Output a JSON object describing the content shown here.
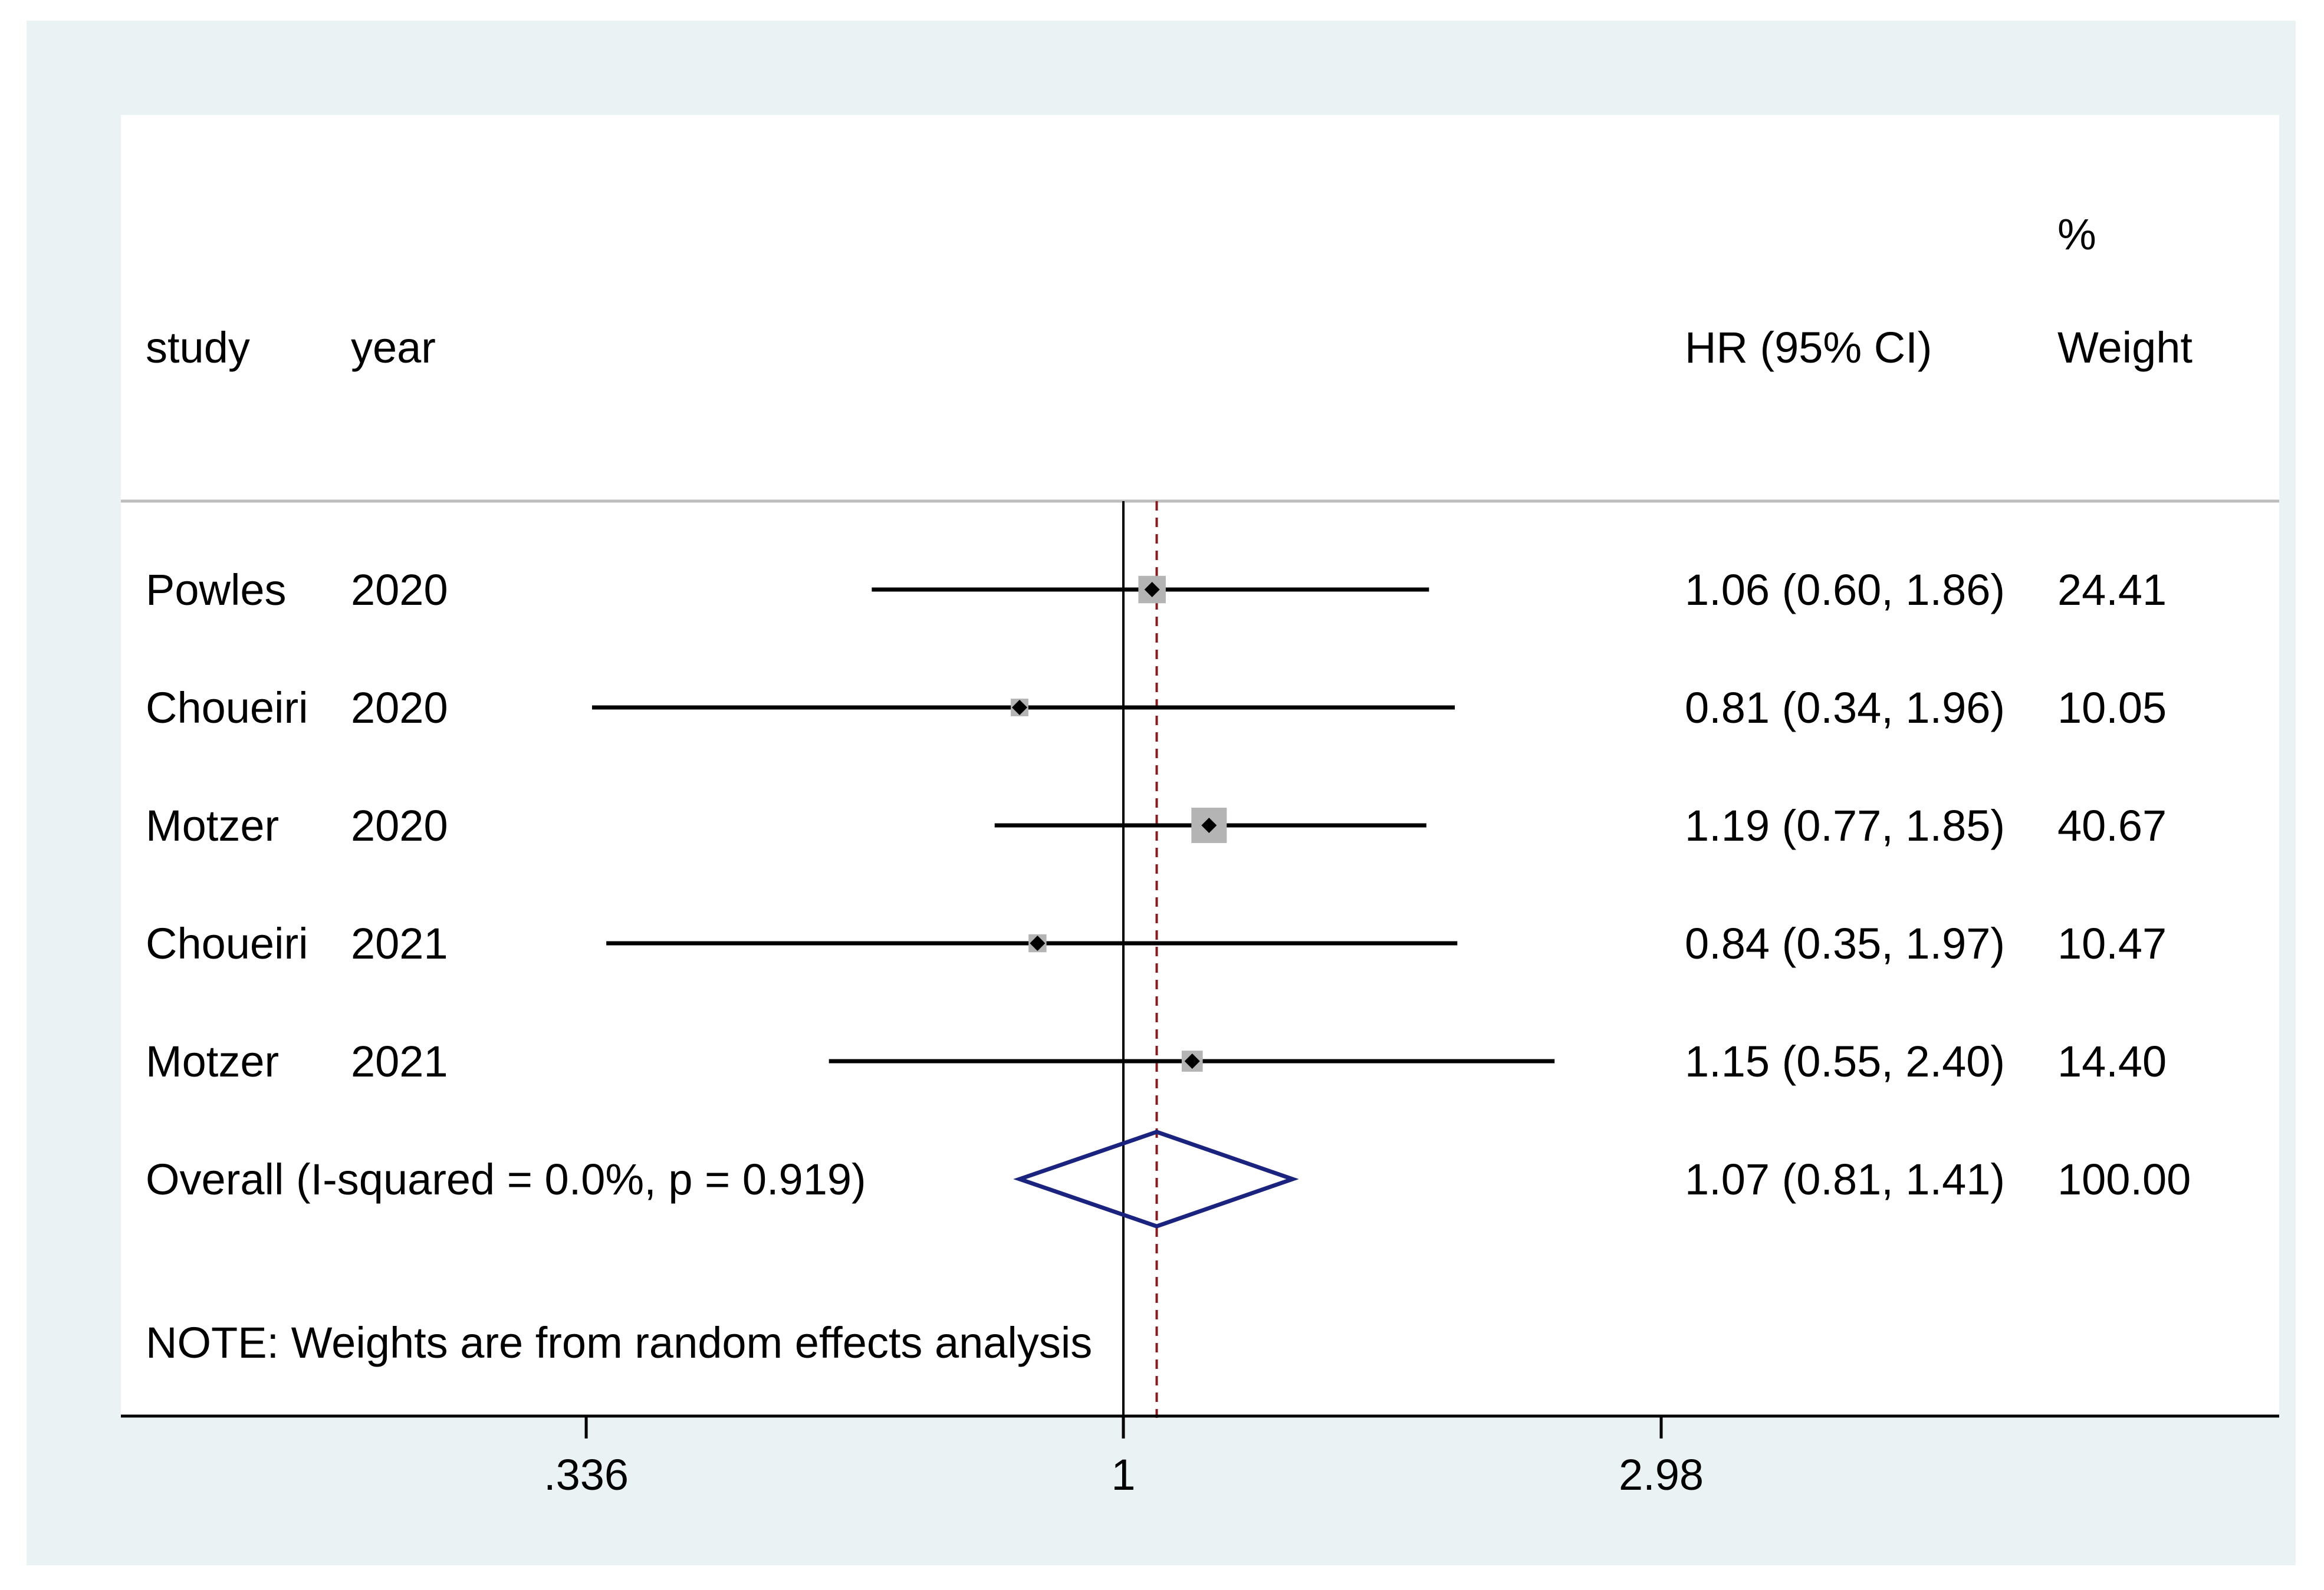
{
  "chart_data": {
    "type": "forest",
    "header": {
      "col_study": "study",
      "col_year": "year",
      "col_effect": "HR (95% CI)",
      "col_weight_line1": "%",
      "col_weight_line2": "Weight"
    },
    "studies": [
      {
        "study": "Powles",
        "year": "2020",
        "hr": 1.06,
        "lower": 0.6,
        "upper": 1.86,
        "ci_text": "1.06 (0.60, 1.86)",
        "weight": 24.41,
        "weight_text": "24.41"
      },
      {
        "study": "Choueiri",
        "year": "2020",
        "hr": 0.81,
        "lower": 0.34,
        "upper": 1.96,
        "ci_text": "0.81 (0.34, 1.96)",
        "weight": 10.05,
        "weight_text": "10.05"
      },
      {
        "study": "Motzer",
        "year": "2020",
        "hr": 1.19,
        "lower": 0.77,
        "upper": 1.85,
        "ci_text": "1.19 (0.77, 1.85)",
        "weight": 40.67,
        "weight_text": "40.67"
      },
      {
        "study": "Choueiri",
        "year": "2021",
        "hr": 0.84,
        "lower": 0.35,
        "upper": 1.97,
        "ci_text": "0.84 (0.35, 1.97)",
        "weight": 10.47,
        "weight_text": "10.47"
      },
      {
        "study": "Motzer",
        "year": "2021",
        "hr": 1.15,
        "lower": 0.55,
        "upper": 2.4,
        "ci_text": "1.15 (0.55, 2.40)",
        "weight": 14.4,
        "weight_text": "14.40"
      }
    ],
    "overall": {
      "label": "Overall  (I-squared = 0.0%, p = 0.919)",
      "hr": 1.07,
      "lower": 0.81,
      "upper": 1.41,
      "ci_text": "1.07 (0.81, 1.41)",
      "weight_text": "100.00"
    },
    "note": "NOTE: Weights are from random effects analysis",
    "x_axis": {
      "scale": "log",
      "ticks": [
        0.336,
        1,
        2.98
      ],
      "tick_labels": [
        ".336",
        "1",
        "2.98"
      ],
      "range": [
        0.24,
        4.2
      ]
    },
    "null_line": 1,
    "colors": {
      "outer_bg": "#eaf2f3",
      "panel_bg": "#ffffff",
      "ci_line": "#000000",
      "weight_box": "#b4b4b4",
      "point": "#000000",
      "diamond": "#1a237e",
      "overall_line": "#8b1a1a",
      "separator": "#bdbdbd"
    }
  }
}
